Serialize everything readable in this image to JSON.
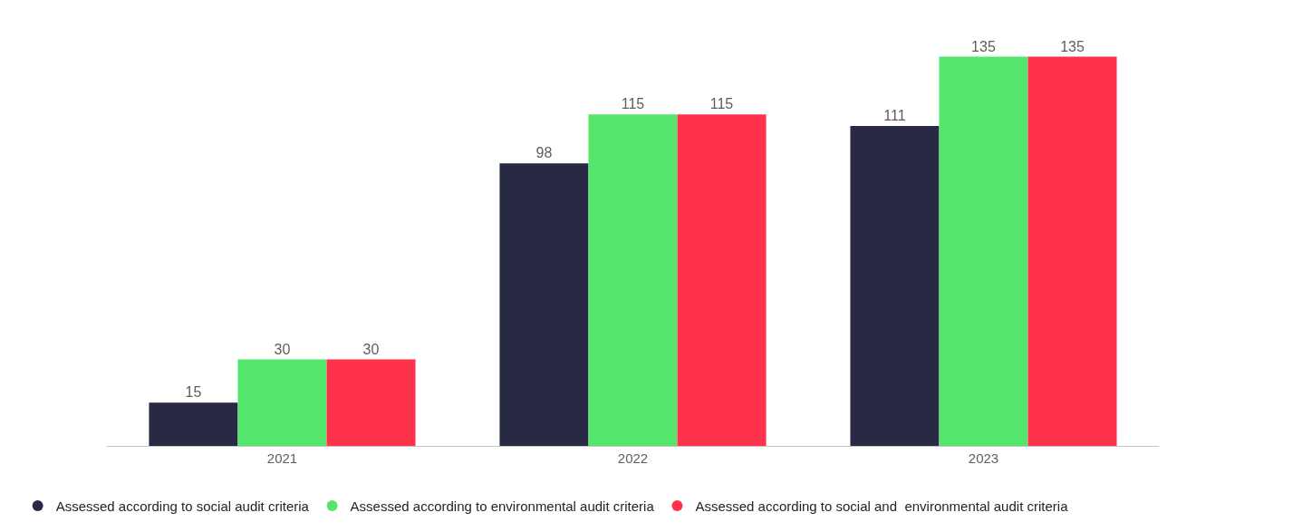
{
  "chart_data": {
    "type": "bar",
    "categories": [
      "2021",
      "2022",
      "2023"
    ],
    "series": [
      {
        "name": "Assessed according to social audit criteria",
        "color": "#282a44",
        "values": [
          15,
          98,
          111
        ]
      },
      {
        "name": "Assessed according to environmental audit criteria",
        "color": "#54e66c",
        "values": [
          30,
          115,
          135
        ]
      },
      {
        "name": "Assessed according to social and  environmental audit criteria",
        "color": "#fe324b",
        "values": [
          30,
          115,
          135
        ]
      }
    ],
    "data_labels": true,
    "legend": "bottom",
    "marker": "circle",
    "tick_labels": "x"
  }
}
